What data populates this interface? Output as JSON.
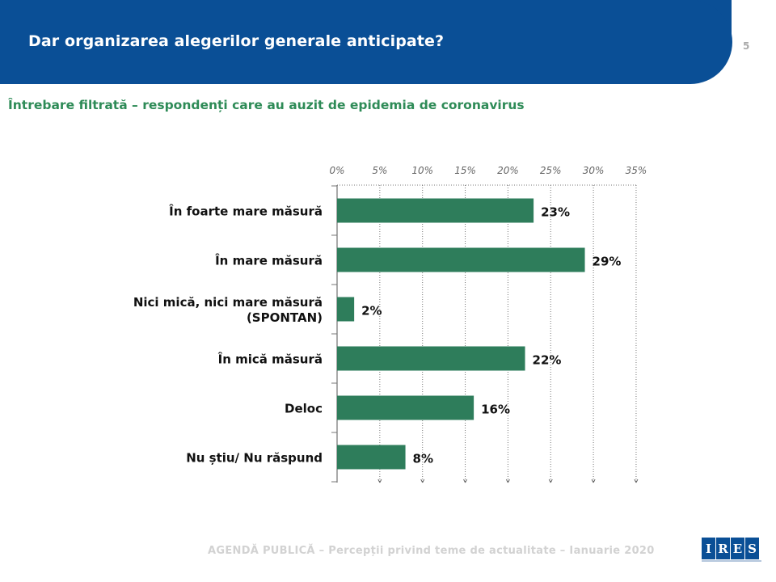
{
  "header": {
    "title": "Dar organizarea alegerilor generale anticipate?",
    "page_number": "5"
  },
  "subtitle": "Întrebare filtrată – respondenți care au auzit de epidemia de coronavirus",
  "footer": {
    "text": "AGENDĂ PUBLICĂ – Percepții privind teme de actualitate – Ianuarie 2020",
    "logo_letters": [
      "I",
      "R",
      "E",
      "S"
    ]
  },
  "colors": {
    "header_bg": "#0a4f96",
    "accent_green": "#2e7d5b",
    "subtitle_green": "#2e8b57"
  },
  "chart_data": {
    "type": "bar",
    "orientation": "horizontal",
    "title": "",
    "xlabel": "",
    "ylabel": "",
    "xlim": [
      0,
      35
    ],
    "ticks": [
      "0%",
      "5%",
      "10%",
      "15%",
      "20%",
      "25%",
      "30%",
      "35%"
    ],
    "tick_values": [
      0,
      5,
      10,
      15,
      20,
      25,
      30,
      35
    ],
    "grid": true,
    "categories": [
      [
        "În foarte mare măsură"
      ],
      [
        "În mare măsură"
      ],
      [
        "Nici mică, nici mare măsură",
        "(SPONTAN)"
      ],
      [
        "În mică măsură"
      ],
      [
        "Deloc"
      ],
      [
        "Nu știu/ Nu răspund"
      ]
    ],
    "values": [
      23,
      29,
      2,
      22,
      16,
      8
    ],
    "value_labels": [
      "23%",
      "29%",
      "2%",
      "22%",
      "16%",
      "8%"
    ]
  }
}
